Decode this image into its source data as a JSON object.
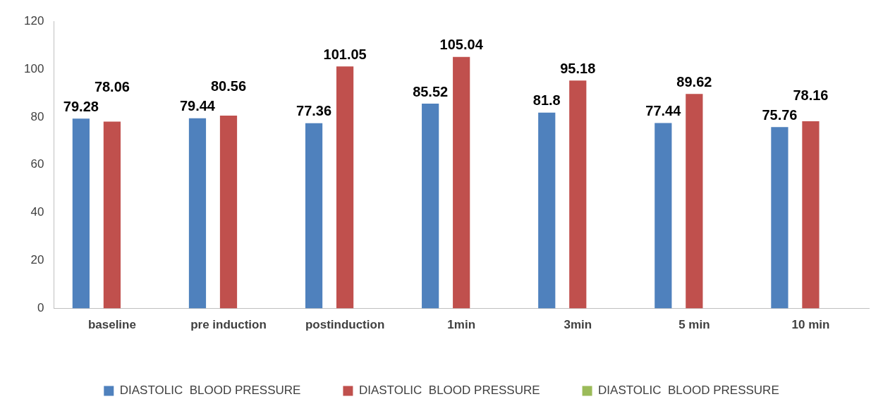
{
  "chart_data": {
    "type": "bar",
    "categories": [
      "baseline",
      "pre induction",
      "postinduction",
      "1min",
      "3min",
      "5 min",
      "10 min"
    ],
    "series": [
      {
        "name": "DIASTOLIC  BLOOD PRESSURE",
        "color": "#4f81bd",
        "values": [
          79.28,
          79.44,
          77.36,
          85.52,
          81.8,
          77.44,
          75.76
        ]
      },
      {
        "name": "DIASTOLIC  BLOOD PRESSURE",
        "color": "#c0504d",
        "values": [
          78.06,
          80.56,
          101.05,
          105.04,
          95.18,
          89.62,
          78.16
        ]
      },
      {
        "name": "DIASTOLIC  BLOOD PRESSURE",
        "color": "#9bbb59",
        "values": [
          null,
          null,
          null,
          null,
          null,
          null,
          null
        ]
      }
    ],
    "ylim": [
      0,
      120
    ],
    "yticks": [
      0,
      20,
      40,
      60,
      80,
      100,
      120
    ],
    "grid": false,
    "legend": "bottom",
    "data_labels": true
  }
}
